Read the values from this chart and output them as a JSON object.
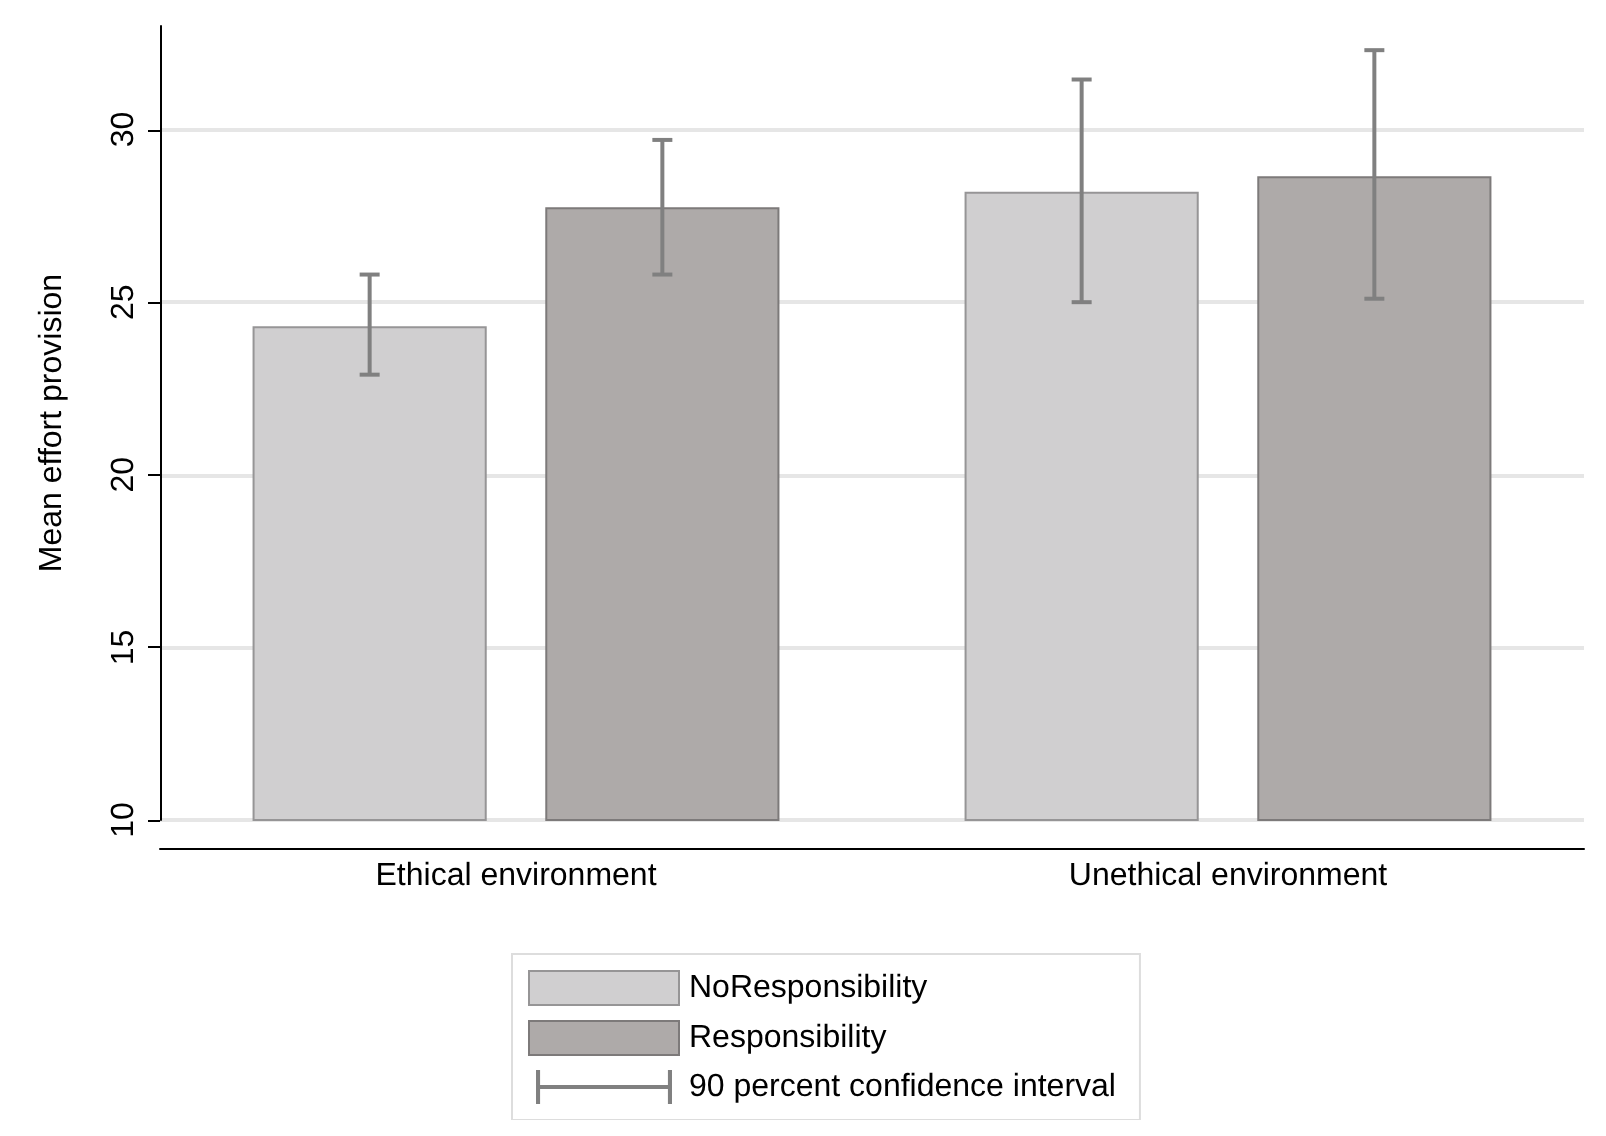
{
  "chart_data": {
    "type": "bar",
    "ylabel": "Mean effort provision",
    "categories": [
      "Ethical environment",
      "Unethical environment"
    ],
    "series": [
      {
        "name": "NoResponsibility",
        "color": "#d0cfd0",
        "values": [
          24.3,
          28.2
        ],
        "errors": [
          [
            22.9,
            25.8
          ],
          [
            25.0,
            31.45
          ]
        ]
      },
      {
        "name": "Responsibility",
        "color": "#aeaaa9",
        "values": [
          27.75,
          28.65
        ],
        "errors": [
          [
            25.8,
            29.7
          ],
          [
            25.1,
            32.3
          ]
        ]
      }
    ],
    "ylim": [
      10,
      33
    ],
    "yticks": [
      10,
      15,
      20,
      25,
      30
    ],
    "grid": "y",
    "legend": "bottom",
    "annotations": [
      "90 percent confidence interval"
    ]
  }
}
